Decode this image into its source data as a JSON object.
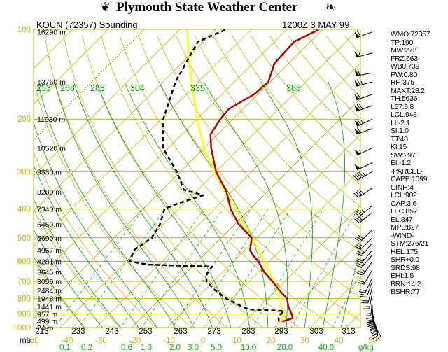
{
  "header": {
    "title": "Plymouth State Weather Center",
    "station": "KOUN (72357) Sounding",
    "obs_time": "1200Z  3 MAY 99",
    "flag_icon_left": "flag-icon",
    "flag_icon_right": "flag-icon"
  },
  "colors": {
    "isotherm": "#c8b400",
    "isobar": "#c8b400",
    "dry_adiabat": "#c8b400",
    "moist_adiabat": "#00a000",
    "mixing_ratio": "#00b000",
    "temperature": "#b00000",
    "dewpoint": "#000000",
    "parcel": "#ffff00",
    "pressure_label": "#c8b400",
    "theta_label": "#00a000"
  },
  "indices": [
    "WMO:72357",
    "TP:190",
    "MW:273",
    "FRZ:663",
    "WB0:739",
    "PW:0.80",
    "RH:375",
    "MAXT:28.2",
    "TH:5636",
    "L57:6.8",
    "LCL:948",
    "LI:-2.1",
    "SI:1.0",
    "TT:48",
    "KI:15",
    "SW:297",
    "EI:-1.2",
    "-PARCEL-",
    "CAPE:1099",
    "CINH:4",
    "LCL:902",
    "CAP:3.6",
    "LFC:857",
    "EL:847",
    "MPL:827",
    "-WIND-",
    "STM:276/21",
    "HEL:175",
    "SHR+0.0",
    "SRDS:98",
    "EHI:1.5",
    "BRN:14.2",
    "BSHR:77"
  ],
  "chart_data": {
    "type": "line",
    "diagram": "Skew-T log-P",
    "ylim": [
      1000,
      100
    ],
    "xlim": [
      -50,
      50
    ],
    "pressure_ticks": [
      "100",
      "200",
      "300",
      "400",
      "500",
      "600",
      "700",
      "800",
      "900",
      "1000"
    ],
    "pressure_values": [
      100,
      200,
      300,
      400,
      500,
      600,
      700,
      800,
      900,
      1000
    ],
    "height_labels": [
      {
        "p": 102,
        "label": "16290 m"
      },
      {
        "p": 150,
        "label": "13760 m"
      },
      {
        "p": 200,
        "label": "11930 m"
      },
      {
        "p": 250,
        "label": "10520 m"
      },
      {
        "p": 300,
        "label": "9330 m"
      },
      {
        "p": 350,
        "label": "8280 m"
      },
      {
        "p": 400,
        "label": "7340 m"
      },
      {
        "p": 450,
        "label": "6469 m"
      },
      {
        "p": 500,
        "label": "5690 m"
      },
      {
        "p": 550,
        "label": "4957 m"
      },
      {
        "p": 600,
        "label": "4281 m"
      },
      {
        "p": 650,
        "label": "3645 m"
      },
      {
        "p": 700,
        "label": "3056 m"
      },
      {
        "p": 750,
        "label": "2484 m"
      },
      {
        "p": 800,
        "label": "1948 m"
      },
      {
        "p": 850,
        "label": "1441 m"
      },
      {
        "p": 900,
        "label": "957 m"
      },
      {
        "p": 950,
        "label": "499 m"
      },
      {
        "p": 1000,
        "label": "24 m"
      }
    ],
    "temperature_ticks": [
      "-50",
      "-40",
      "-30",
      "-20",
      "-10",
      "0",
      "10",
      "20",
      "30",
      "40",
      "50"
    ],
    "temperature_values": [
      -50,
      -40,
      -30,
      -20,
      -10,
      0,
      10,
      20,
      30,
      40,
      50
    ],
    "x_unit_label": "mb",
    "theta_bottom_labels": [
      "213",
      "233",
      "243",
      "253",
      "263",
      "273",
      "283",
      "293",
      "303",
      "313"
    ],
    "theta_top_labels": [
      "253",
      "268",
      "283",
      "304",
      "335",
      "388"
    ],
    "mixing_ratio_labels": [
      "0.1",
      "0.2",
      "0.6",
      "1.0",
      "2.0",
      "3.0",
      "5.0",
      "10.0",
      "20.0",
      "40.0"
    ],
    "mixing_ratio_unit": "g/kg",
    "series": [
      {
        "name": "temperature",
        "style": "solid",
        "points": [
          {
            "p": 955,
            "t": 20.5
          },
          {
            "p": 930,
            "t": 22.5
          },
          {
            "p": 900,
            "t": 21.0
          },
          {
            "p": 850,
            "t": 18.0
          },
          {
            "p": 800,
            "t": 15.5
          },
          {
            "p": 750,
            "t": 11.0
          },
          {
            "p": 700,
            "t": 6.5
          },
          {
            "p": 650,
            "t": 1.5
          },
          {
            "p": 600,
            "t": -3.0
          },
          {
            "p": 570,
            "t": -6.5
          },
          {
            "p": 550,
            "t": -8.5
          },
          {
            "p": 500,
            "t": -11.5
          },
          {
            "p": 450,
            "t": -19.0
          },
          {
            "p": 400,
            "t": -25.5
          },
          {
            "p": 350,
            "t": -31.5
          },
          {
            "p": 300,
            "t": -40.0
          },
          {
            "p": 250,
            "t": -48.0
          },
          {
            "p": 225,
            "t": -52.0
          },
          {
            "p": 200,
            "t": -53.5
          },
          {
            "p": 185,
            "t": -54.0
          },
          {
            "p": 165,
            "t": -51.0
          },
          {
            "p": 150,
            "t": -50.5
          },
          {
            "p": 130,
            "t": -54.0
          },
          {
            "p": 110,
            "t": -54.5
          },
          {
            "p": 100,
            "t": -51.0
          }
        ]
      },
      {
        "name": "dewpoint",
        "style": "dashed",
        "points": [
          {
            "p": 955,
            "t": 19.5
          },
          {
            "p": 940,
            "t": 19.0
          },
          {
            "p": 930,
            "t": 18.5
          },
          {
            "p": 900,
            "t": 18.0
          },
          {
            "p": 880,
            "t": 18.0
          },
          {
            "p": 870,
            "t": 8.0
          },
          {
            "p": 850,
            "t": 5.0
          },
          {
            "p": 800,
            "t": -1.5
          },
          {
            "p": 750,
            "t": -7.0
          },
          {
            "p": 700,
            "t": -12.0
          },
          {
            "p": 660,
            "t": -14.0
          },
          {
            "p": 625,
            "t": -14.5
          },
          {
            "p": 615,
            "t": -33.0
          },
          {
            "p": 600,
            "t": -39.0
          },
          {
            "p": 550,
            "t": -41.0
          },
          {
            "p": 500,
            "t": -39.5
          },
          {
            "p": 450,
            "t": -41.0
          },
          {
            "p": 400,
            "t": -44.0
          },
          {
            "p": 385,
            "t": -42.0
          },
          {
            "p": 360,
            "t": -37.0
          },
          {
            "p": 345,
            "t": -44.0
          },
          {
            "p": 300,
            "t": -51.0
          },
          {
            "p": 250,
            "t": -61.5
          },
          {
            "p": 200,
            "t": -69.5
          },
          {
            "p": 150,
            "t": -76.5
          },
          {
            "p": 110,
            "t": -81.5
          },
          {
            "p": 100,
            "t": -77.0
          }
        ]
      },
      {
        "name": "parcel",
        "style": "solid",
        "points": [
          {
            "p": 955,
            "t": 20.0
          },
          {
            "p": 900,
            "t": 19.0
          },
          {
            "p": 850,
            "t": 16.0
          },
          {
            "p": 800,
            "t": 13.5
          },
          {
            "p": 750,
            "t": 10.5
          },
          {
            "p": 700,
            "t": 7.0
          },
          {
            "p": 650,
            "t": 3.0
          },
          {
            "p": 600,
            "t": -1.5
          },
          {
            "p": 550,
            "t": -6.0
          },
          {
            "p": 500,
            "t": -11.5
          },
          {
            "p": 450,
            "t": -17.5
          },
          {
            "p": 400,
            "t": -24.0
          },
          {
            "p": 350,
            "t": -32.0
          },
          {
            "p": 300,
            "t": -40.5
          },
          {
            "p": 250,
            "t": -50.0
          },
          {
            "p": 200,
            "t": -60.0
          },
          {
            "p": 150,
            "t": -72.0
          },
          {
            "p": 100,
            "t": -88.0
          }
        ]
      }
    ],
    "wind_barbs": [
      {
        "p": 102,
        "dir": 250,
        "spd": 60
      },
      {
        "p": 120,
        "dir": 255,
        "spd": 55
      },
      {
        "p": 140,
        "dir": 260,
        "spd": 60
      },
      {
        "p": 150,
        "dir": 255,
        "spd": 65
      },
      {
        "p": 165,
        "dir": 250,
        "spd": 60
      },
      {
        "p": 180,
        "dir": 250,
        "spd": 70
      },
      {
        "p": 200,
        "dir": 245,
        "spd": 65
      },
      {
        "p": 215,
        "dir": 250,
        "spd": 60
      },
      {
        "p": 250,
        "dir": 245,
        "spd": 55
      },
      {
        "p": 280,
        "dir": 245,
        "spd": 50
      },
      {
        "p": 300,
        "dir": 240,
        "spd": 45
      },
      {
        "p": 340,
        "dir": 235,
        "spd": 40
      },
      {
        "p": 390,
        "dir": 230,
        "spd": 35
      },
      {
        "p": 410,
        "dir": 230,
        "spd": 35
      },
      {
        "p": 470,
        "dir": 225,
        "spd": 30
      },
      {
        "p": 500,
        "dir": 225,
        "spd": 30
      },
      {
        "p": 520,
        "dir": 220,
        "spd": 28
      },
      {
        "p": 550,
        "dir": 220,
        "spd": 25
      },
      {
        "p": 570,
        "dir": 220,
        "spd": 25
      },
      {
        "p": 600,
        "dir": 215,
        "spd": 25
      },
      {
        "p": 640,
        "dir": 210,
        "spd": 22
      },
      {
        "p": 680,
        "dir": 205,
        "spd": 20
      },
      {
        "p": 700,
        "dir": 200,
        "spd": 20
      },
      {
        "p": 730,
        "dir": 195,
        "spd": 20
      },
      {
        "p": 760,
        "dir": 190,
        "spd": 20
      },
      {
        "p": 800,
        "dir": 185,
        "spd": 25
      },
      {
        "p": 840,
        "dir": 180,
        "spd": 30
      },
      {
        "p": 860,
        "dir": 175,
        "spd": 30
      },
      {
        "p": 880,
        "dir": 170,
        "spd": 30
      },
      {
        "p": 900,
        "dir": 165,
        "spd": 25
      },
      {
        "p": 920,
        "dir": 160,
        "spd": 20
      },
      {
        "p": 940,
        "dir": 160,
        "spd": 15
      },
      {
        "p": 955,
        "dir": 150,
        "spd": 10
      }
    ]
  }
}
